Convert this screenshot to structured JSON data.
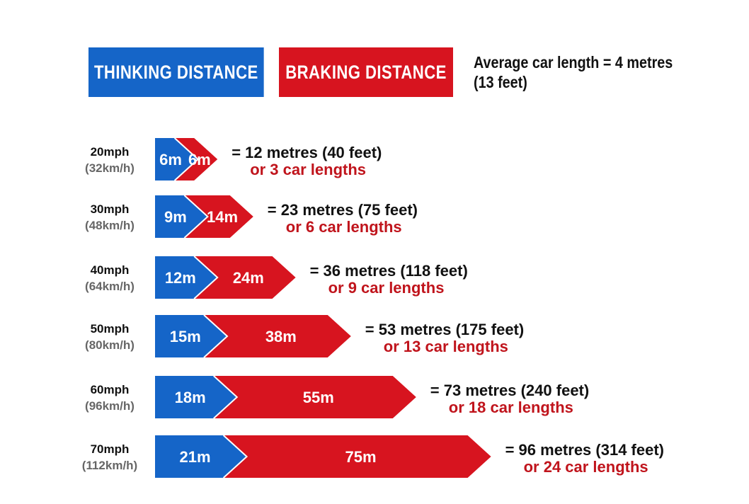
{
  "legend": {
    "thinking_label": "THINKING DISTANCE",
    "braking_label": "BRAKING DISTANCE",
    "car_length_line1": "Average car length = 4 metres",
    "car_length_line2": "(13 feet)"
  },
  "colors": {
    "thinking": "#1565c8",
    "braking": "#d7141f",
    "total_text": "#111111",
    "car_lengths_text": "#c0141c",
    "kmh_text": "#666666"
  },
  "chart_data": {
    "type": "bar",
    "orientation": "horizontal",
    "stacked": true,
    "series": [
      {
        "name": "THINKING DISTANCE",
        "values": [
          6,
          9,
          12,
          15,
          18,
          21
        ]
      },
      {
        "name": "BRAKING DISTANCE",
        "values": [
          6,
          14,
          24,
          38,
          55,
          75
        ]
      }
    ],
    "rows": [
      {
        "speed": "20mph",
        "speed_kmh": "(32km/h)",
        "thinking_label": "6m",
        "braking_label": "6m",
        "total": "= 12 metres (40 feet)",
        "car_lengths": "or 3 car lengths"
      },
      {
        "speed": "30mph",
        "speed_kmh": "(48km/h)",
        "thinking_label": "9m",
        "braking_label": "14m",
        "total": "= 23 metres (75 feet)",
        "car_lengths": "or 6 car lengths"
      },
      {
        "speed": "40mph",
        "speed_kmh": "(64km/h)",
        "thinking_label": "12m",
        "braking_label": "24m",
        "total": "= 36 metres (118 feet)",
        "car_lengths": "or 9 car lengths"
      },
      {
        "speed": "50mph",
        "speed_kmh": "(80km/h)",
        "thinking_label": "15m",
        "braking_label": "38m",
        "total": "= 53 metres (175 feet)",
        "car_lengths": "or 13 car lengths"
      },
      {
        "speed": "60mph",
        "speed_kmh": "(96km/h)",
        "thinking_label": "18m",
        "braking_label": "55m",
        "total": "= 73 metres (240 feet)",
        "car_lengths": "or 18 car lengths"
      },
      {
        "speed": "70mph",
        "speed_kmh": "(112km/h)",
        "thinking_label": "21m",
        "braking_label": "75m",
        "total": "= 96 metres (314 feet)",
        "car_lengths": "or 24 car lengths"
      }
    ]
  }
}
